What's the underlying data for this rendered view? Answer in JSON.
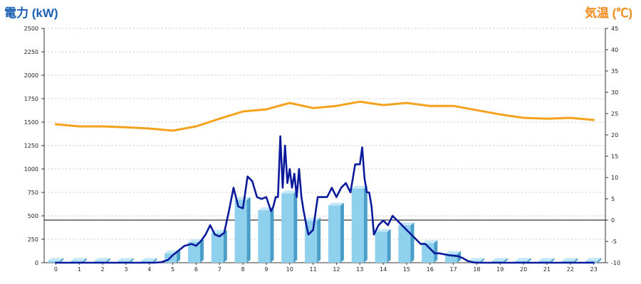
{
  "colors": {
    "left_axis_label": "#1a5fb4",
    "right_axis_label": "#f28a1c",
    "bar_front": "#8fd0ec",
    "bar_top": "#c4e8f7",
    "bar_side": "#4a9ec7",
    "power_line": "#0a1a9a",
    "temp_line": "#f5a11c",
    "grid": "#bbbbbb"
  },
  "chart_data": {
    "type": "bar",
    "ylabel": "電力 (kW)",
    "y2label": "気温 (℃)",
    "xlabel": "",
    "categories": [
      "0",
      "1",
      "2",
      "3",
      "4",
      "5",
      "6",
      "7",
      "8",
      "9",
      "10",
      "11",
      "12",
      "13",
      "14",
      "15",
      "16",
      "17",
      "18",
      "19",
      "20",
      "21",
      "22",
      "23"
    ],
    "ylim": [
      0,
      2500
    ],
    "yticks": [
      0,
      250,
      500,
      750,
      1000,
      1250,
      1500,
      1750,
      2000,
      2250,
      2500
    ],
    "y2lim": [
      -10,
      45
    ],
    "y2ticks": [
      -10,
      -5,
      0,
      5,
      10,
      15,
      20,
      25,
      30,
      35,
      40,
      45
    ],
    "grid": true,
    "series": [
      {
        "kind": "bar",
        "values": [
          20,
          20,
          20,
          20,
          20,
          100,
          220,
          320,
          670,
          560,
          740,
          450,
          610,
          790,
          330,
          400,
          210,
          95,
          20,
          20,
          20,
          20,
          20,
          20
        ]
      },
      {
        "kind": "line",
        "axis": "left",
        "x": [
          0,
          4,
          4.2,
          4.5,
          4.8,
          5,
          5.2,
          5.5,
          5.8,
          6,
          6.2,
          6.4,
          6.6,
          6.8,
          7.0,
          7.2,
          7.4,
          7.6,
          7.8,
          8.0,
          8.2,
          8.4,
          8.6,
          8.8,
          9.0,
          9.2,
          9.3,
          9.4,
          9.5,
          9.6,
          9.7,
          9.8,
          9.9,
          10.0,
          10.1,
          10.2,
          10.3,
          10.4,
          10.5,
          10.6,
          10.7,
          10.8,
          11.0,
          11.2,
          11.4,
          11.6,
          11.8,
          12.0,
          12.2,
          12.4,
          12.6,
          12.8,
          13.0,
          13.1,
          13.2,
          13.3,
          13.4,
          13.5,
          13.6,
          13.7,
          13.8,
          14.0,
          14.2,
          14.4,
          14.6,
          14.8,
          15.0,
          15.2,
          15.4,
          15.6,
          15.8,
          16.0,
          16.2,
          16.4,
          16.6,
          16.8,
          17.0,
          17.2,
          17.4,
          17.6,
          17.8,
          18.0,
          23
        ],
        "values": [
          0,
          0,
          0,
          5,
          30,
          80,
          120,
          180,
          200,
          180,
          230,
          300,
          400,
          300,
          280,
          320,
          550,
          800,
          600,
          580,
          920,
          870,
          700,
          680,
          700,
          550,
          600,
          700,
          700,
          1350,
          800,
          1250,
          850,
          1000,
          800,
          950,
          700,
          1000,
          700,
          550,
          420,
          300,
          350,
          700,
          700,
          700,
          800,
          700,
          800,
          850,
          750,
          1050,
          1050,
          1230,
          900,
          750,
          750,
          600,
          300,
          350,
          400,
          450,
          400,
          500,
          450,
          400,
          350,
          300,
          250,
          200,
          200,
          150,
          100,
          100,
          90,
          80,
          75,
          70,
          50,
          20,
          5,
          0,
          0
        ]
      },
      {
        "kind": "line",
        "axis": "right",
        "x": [
          0,
          1,
          2,
          3,
          4,
          5,
          6,
          7,
          8,
          9,
          10,
          11,
          12,
          13,
          14,
          15,
          16,
          17,
          18,
          19,
          20,
          21,
          22,
          23
        ],
        "values": [
          22.5,
          22,
          22,
          21.8,
          21.5,
          21,
          22,
          23.8,
          25.5,
          26,
          27.5,
          26.3,
          26.8,
          27.8,
          27,
          27.5,
          26.8,
          26.8,
          25.8,
          24.8,
          24,
          23.8,
          24,
          23.5
        ]
      }
    ]
  }
}
